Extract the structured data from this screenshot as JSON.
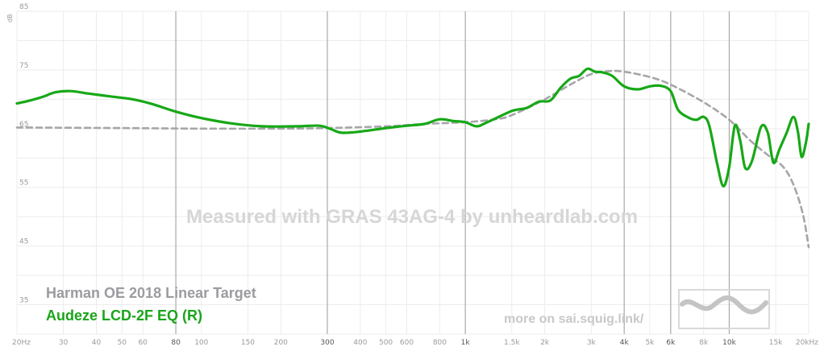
{
  "chart_data": {
    "type": "line",
    "ylabel": "dB",
    "ylim": [
      30,
      85
    ],
    "xlim": [
      20,
      20000
    ],
    "x_scale": "log",
    "grid": true,
    "legend_placement": "bottom-left",
    "y_ticks": [
      {
        "value": 35,
        "label": "35"
      },
      {
        "value": 45,
        "label": "45"
      },
      {
        "value": 55,
        "label": "55"
      },
      {
        "value": 65,
        "label": "65"
      },
      {
        "value": 75,
        "label": "75"
      },
      {
        "value": 85,
        "label": "85"
      }
    ],
    "x_ticks": [
      {
        "value": 20,
        "label": "20Hz",
        "major": false
      },
      {
        "value": 30,
        "label": "30",
        "major": false
      },
      {
        "value": 40,
        "label": "40",
        "major": false
      },
      {
        "value": 50,
        "label": "50",
        "major": false
      },
      {
        "value": 60,
        "label": "60",
        "major": false
      },
      {
        "value": 80,
        "label": "80",
        "major": true
      },
      {
        "value": 100,
        "label": "100",
        "major": false
      },
      {
        "value": 150,
        "label": "150",
        "major": false
      },
      {
        "value": 200,
        "label": "200",
        "major": false
      },
      {
        "value": 300,
        "label": "300",
        "major": true
      },
      {
        "value": 400,
        "label": "400",
        "major": false
      },
      {
        "value": 500,
        "label": "500",
        "major": false
      },
      {
        "value": 600,
        "label": "600",
        "major": false
      },
      {
        "value": 800,
        "label": "800",
        "major": false
      },
      {
        "value": 1000,
        "label": "1k",
        "major": true
      },
      {
        "value": 1500,
        "label": "1.5k",
        "major": false
      },
      {
        "value": 2000,
        "label": "2k",
        "major": false
      },
      {
        "value": 3000,
        "label": "3k",
        "major": false
      },
      {
        "value": 4000,
        "label": "4k",
        "major": true
      },
      {
        "value": 5000,
        "label": "5k",
        "major": false
      },
      {
        "value": 6000,
        "label": "6k",
        "major": true
      },
      {
        "value": 8000,
        "label": "8k",
        "major": false
      },
      {
        "value": 10000,
        "label": "10k",
        "major": true
      },
      {
        "value": 15000,
        "label": "15k",
        "major": false
      },
      {
        "value": 20000,
        "label": "20kHz",
        "major": false
      }
    ],
    "series": [
      {
        "name": "Harman OE 2018 Linear Target",
        "color": "#a6a6aa",
        "style": "dashed",
        "points": [
          [
            20,
            65.2
          ],
          [
            50,
            65.1
          ],
          [
            100,
            65.0
          ],
          [
            200,
            65.0
          ],
          [
            300,
            65.1
          ],
          [
            500,
            65.4
          ],
          [
            700,
            65.8
          ],
          [
            1000,
            66.1
          ],
          [
            1300,
            66.6
          ],
          [
            1500,
            67.3
          ],
          [
            2000,
            70.0
          ],
          [
            2500,
            72.5
          ],
          [
            3000,
            74.3
          ],
          [
            3500,
            74.8
          ],
          [
            4000,
            74.7
          ],
          [
            5000,
            73.8
          ],
          [
            6000,
            72.5
          ],
          [
            8000,
            69.5
          ],
          [
            10000,
            66.5
          ],
          [
            12000,
            63.0
          ],
          [
            14000,
            60.5
          ],
          [
            16000,
            58.5
          ],
          [
            17500,
            55.5
          ],
          [
            19000,
            50.5
          ],
          [
            20000,
            44.8
          ]
        ]
      },
      {
        "name": "Audeze LCD-2F EQ (R)",
        "color": "#17a817",
        "style": "solid",
        "points": [
          [
            20,
            69.3
          ],
          [
            22,
            69.7
          ],
          [
            25,
            70.4
          ],
          [
            28,
            71.2
          ],
          [
            32,
            71.4
          ],
          [
            37,
            71.0
          ],
          [
            45,
            70.5
          ],
          [
            55,
            70.0
          ],
          [
            65,
            69.2
          ],
          [
            80,
            67.9
          ],
          [
            100,
            66.8
          ],
          [
            130,
            65.9
          ],
          [
            170,
            65.4
          ],
          [
            230,
            65.4
          ],
          [
            280,
            65.5
          ],
          [
            310,
            64.9
          ],
          [
            340,
            64.3
          ],
          [
            400,
            64.5
          ],
          [
            500,
            65.1
          ],
          [
            600,
            65.5
          ],
          [
            700,
            65.8
          ],
          [
            800,
            66.6
          ],
          [
            900,
            66.3
          ],
          [
            1000,
            66.1
          ],
          [
            1100,
            65.4
          ],
          [
            1200,
            66.0
          ],
          [
            1500,
            68.0
          ],
          [
            1700,
            68.5
          ],
          [
            1900,
            69.6
          ],
          [
            2100,
            69.8
          ],
          [
            2300,
            72.0
          ],
          [
            2500,
            73.5
          ],
          [
            2700,
            74.0
          ],
          [
            2900,
            75.2
          ],
          [
            3100,
            74.7
          ],
          [
            3300,
            74.6
          ],
          [
            3600,
            74.0
          ],
          [
            4000,
            72.2
          ],
          [
            4500,
            71.7
          ],
          [
            5000,
            72.2
          ],
          [
            5500,
            72.3
          ],
          [
            6000,
            71.4
          ],
          [
            6400,
            68.2
          ],
          [
            7000,
            66.9
          ],
          [
            7500,
            66.5
          ],
          [
            8000,
            67.0
          ],
          [
            8400,
            65.5
          ],
          [
            9000,
            59.0
          ],
          [
            9500,
            55.2
          ],
          [
            10000,
            58.5
          ],
          [
            10500,
            65.5
          ],
          [
            11000,
            63.0
          ],
          [
            11500,
            58.3
          ],
          [
            12200,
            59.5
          ],
          [
            13200,
            65.3
          ],
          [
            14000,
            64.3
          ],
          [
            14700,
            59.2
          ],
          [
            15500,
            61.5
          ],
          [
            16500,
            64.3
          ],
          [
            17500,
            67.0
          ],
          [
            18200,
            64.5
          ],
          [
            18800,
            60.2
          ],
          [
            19500,
            62.5
          ],
          [
            20000,
            65.8
          ]
        ]
      }
    ],
    "watermark": "Measured with GRAS 43AG-4 by unheardlab.com",
    "footer_link": "more on sai.squig.link/",
    "logo": "squiggle-logo"
  }
}
